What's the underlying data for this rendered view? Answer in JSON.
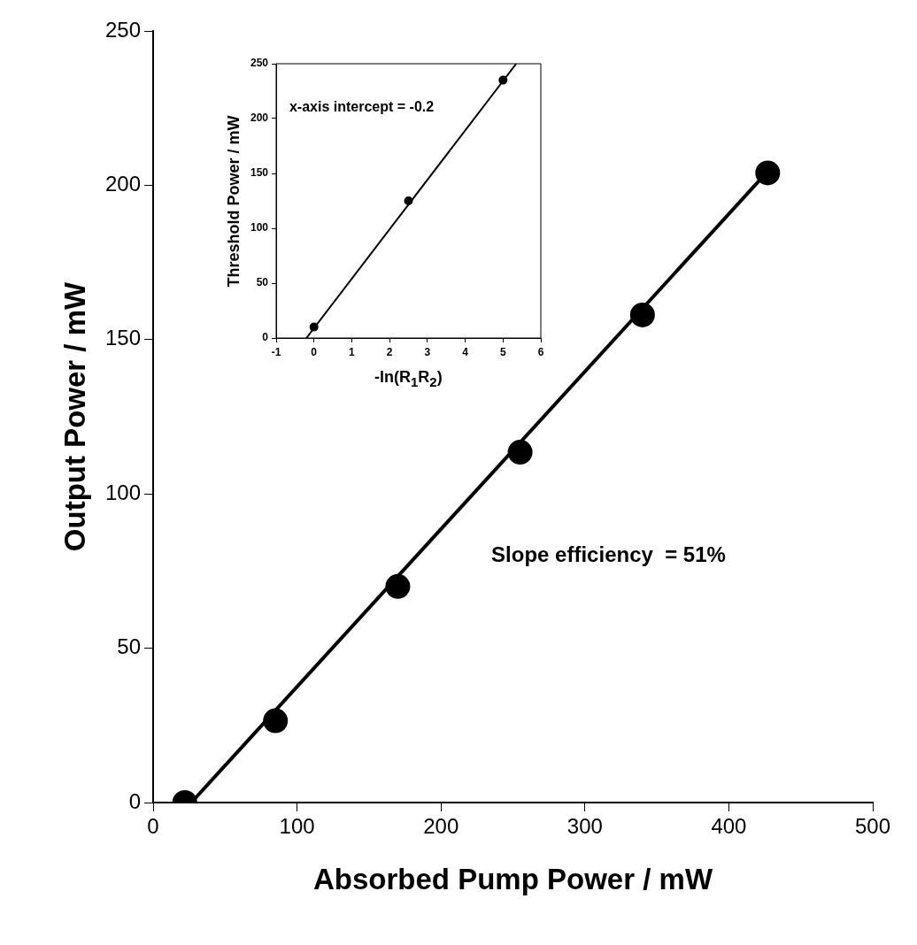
{
  "chart_data": [
    {
      "type": "scatter",
      "xlabel": "Absorbed Pump Power / mW",
      "ylabel": "Output Power / mW",
      "xlim": [
        0,
        500
      ],
      "xticks": [
        0,
        100,
        200,
        300,
        400,
        500
      ],
      "ylim": [
        0,
        250
      ],
      "yticks": [
        0,
        50,
        100,
        150,
        200,
        250
      ],
      "grid": false,
      "legend": false,
      "series": [
        {
          "color": "#000000",
          "marker": "circle",
          "x": [
            22,
            85,
            170,
            255,
            340,
            427
          ],
          "values": [
            0,
            26.5,
            70,
            113.5,
            158,
            204
          ]
        },
        {
          "type": "line",
          "color": "#000000",
          "marker": "none",
          "line_style": "solid",
          "x": [
            26.5,
            428
          ],
          "values": [
            0,
            205
          ]
        }
      ],
      "annotations": [
        "Slope efficiency  = 51%"
      ]
    },
    {
      "type": "scatter",
      "xlabel": "-ln(R$_{1}$R$_{2}$)",
      "ylabel": "Threshold Power / mW",
      "xlim": [
        -1,
        6
      ],
      "xticks": [
        -1,
        0,
        1,
        2,
        3,
        4,
        5,
        6
      ],
      "ylim": [
        0,
        250
      ],
      "yticks": [
        0,
        50,
        100,
        150,
        200,
        250
      ],
      "grid": false,
      "legend": false,
      "series": [
        {
          "color": "#000000",
          "marker": "circle",
          "x": [
            0,
            2.5,
            5
          ],
          "values": [
            10,
            125,
            235
          ]
        },
        {
          "type": "line",
          "color": "#000000",
          "marker": "none",
          "line_style": "solid",
          "x": [
            -0.2,
            5.35
          ],
          "values": [
            0,
            250
          ]
        }
      ],
      "annotations": [
        "x-axis intercept = -0.2"
      ]
    }
  ]
}
